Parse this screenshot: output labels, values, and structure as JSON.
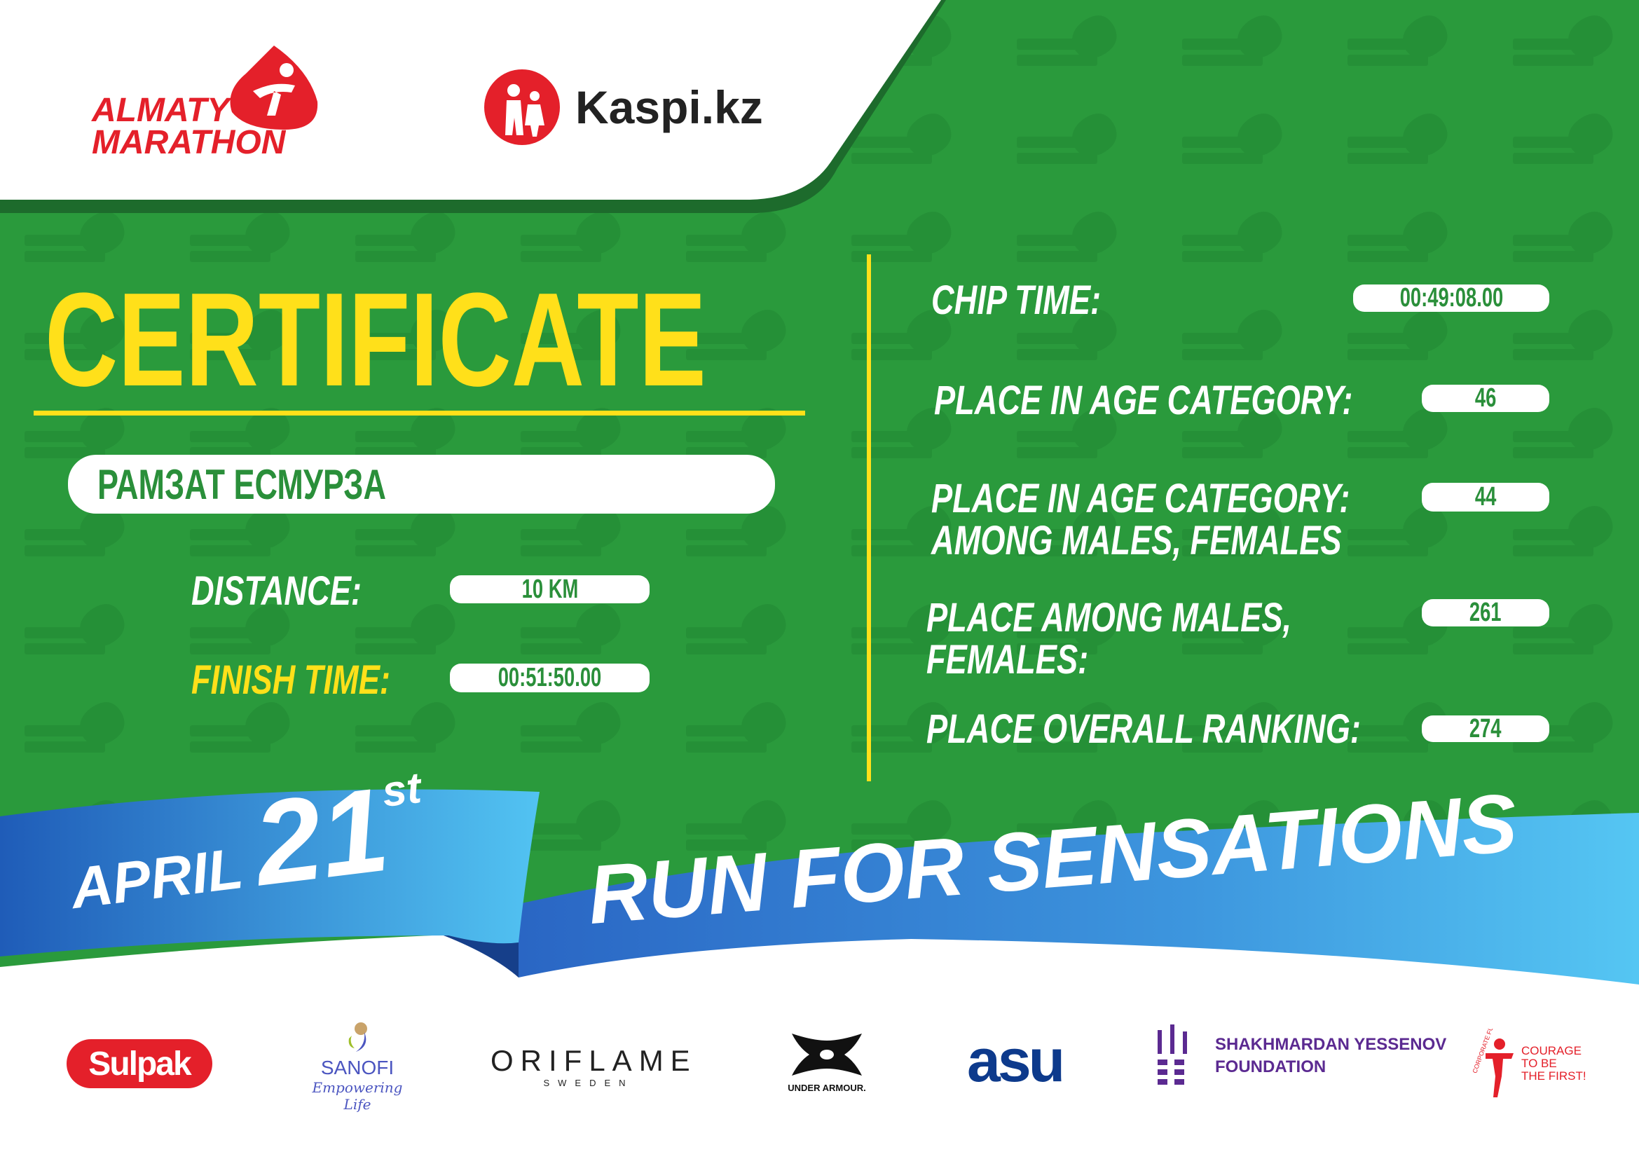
{
  "colors": {
    "green": "#2a9a3c",
    "dark_green": "#1d6b2c",
    "yellow": "#ffe01a",
    "red": "#e4202a",
    "blue_dark": "#1f5cb8",
    "blue_light": "#52c3f2"
  },
  "header": {
    "event_logo": {
      "line1": "ALMATY",
      "line2": "MARATHON",
      "icon": "runner-drop-icon"
    },
    "sponsor_logo": {
      "text": "Kaspi.kz",
      "icon": "family-icon"
    }
  },
  "certificate": {
    "title": "CERTIFICATE",
    "name": "РАМЗАТ ЕСМУРЗА",
    "distance_label": "DISTANCE:",
    "distance": "10 KM",
    "finish_label": "FINISH TIME:",
    "finish_time": "00:51:50.00"
  },
  "results": {
    "chip_label": "CHIP TIME:",
    "chip_time": "00:49:08.00",
    "age_label": "PLACE IN AGE CATEGORY:",
    "age_place": "46",
    "age_gender_label_1": "PLACE IN AGE CATEGORY:",
    "age_gender_label_2": "AMONG MALES, FEMALES",
    "age_gender_place": "44",
    "gender_label_1": "PLACE AMONG MALES,",
    "gender_label_2": "FEMALES:",
    "gender_place": "261",
    "overall_label": "PLACE OVERALL RANKING:",
    "overall_place": "274"
  },
  "ribbon": {
    "month": "APRIL",
    "day": "21",
    "suffix": "st",
    "slogan": "RUN FOR SENSATIONS"
  },
  "sponsors": {
    "sulpak": "Sulpak",
    "sanofi": "SANOFI",
    "sanofi_tagline": "Empowering Life",
    "oriflame": "ORIFLAME",
    "oriflame_sub": "SWEDEN",
    "under_armour": "UNDER ARMOUR.",
    "asu": "asu",
    "yessenov_1": "SHAKHMARDAN YESSENOV",
    "yessenov_2": "FOUNDATION",
    "fund_arc": "CORPORATE FUND",
    "fund_1": "COURAGE",
    "fund_2": "TO BE",
    "fund_3": "THE FIRST!"
  }
}
